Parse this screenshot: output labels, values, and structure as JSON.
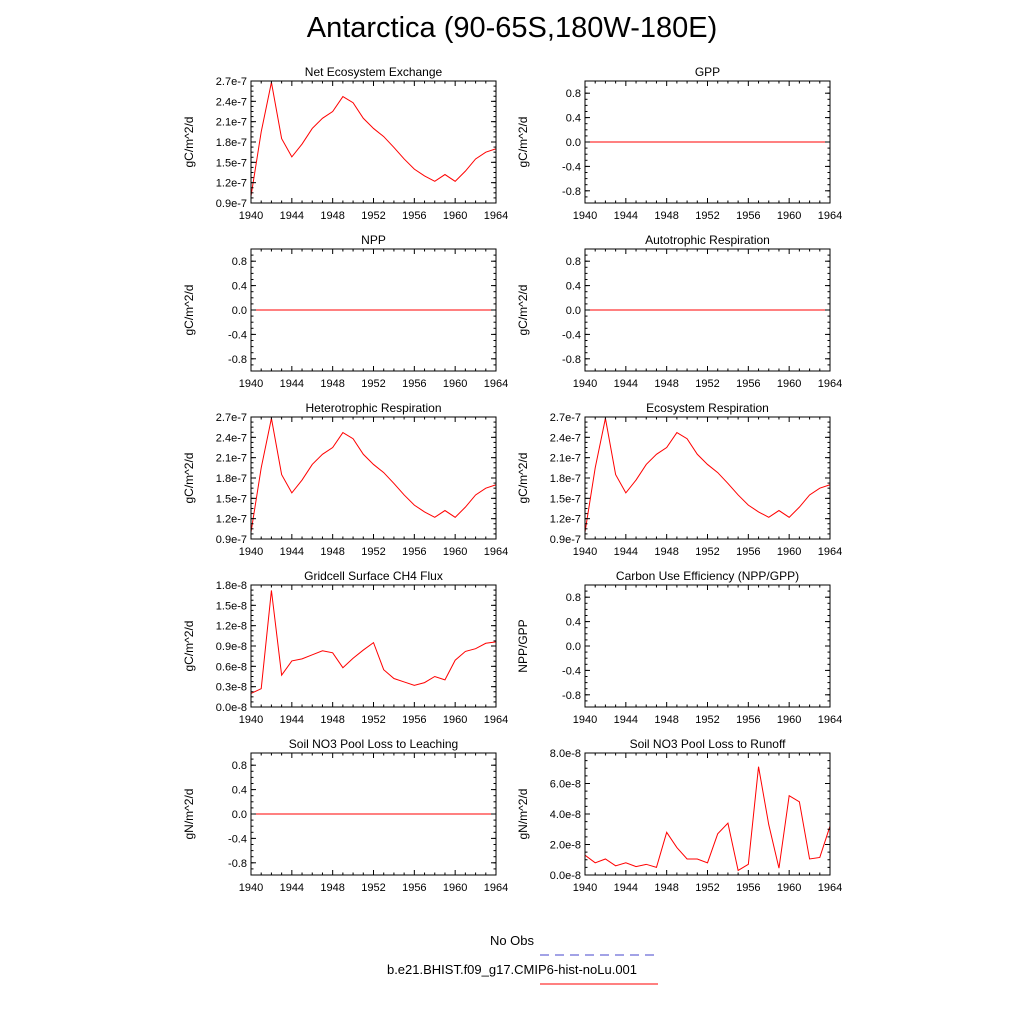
{
  "title": "Antarctica (90-65S,180W-180E)",
  "legend": {
    "entries": [
      {
        "label": "No Obs",
        "color": "#4444cc",
        "dash": true
      },
      {
        "label": "b.e21.BHIST.f09_g17.CMIP6-hist-noLu.001",
        "color": "#ff0000",
        "dash": false
      }
    ]
  },
  "chart_data": [
    {
      "type": "line",
      "title": "Net Ecosystem Exchange",
      "ylabel": "gC/m^2/d",
      "xlim": [
        1940,
        1964
      ],
      "xticks": [
        "1940",
        "1944",
        "1948",
        "1952",
        "1956",
        "1960",
        "1964"
      ],
      "ylim": [
        9e-08,
        2.7e-07
      ],
      "yticks": [
        "0.9e-7",
        "1.2e-7",
        "1.5e-7",
        "1.8e-7",
        "2.1e-7",
        "2.4e-7",
        "2.7e-7"
      ],
      "x": [
        1940,
        1941,
        1942,
        1943,
        1944,
        1945,
        1946,
        1947,
        1948,
        1949,
        1950,
        1951,
        1952,
        1953,
        1954,
        1955,
        1956,
        1957,
        1958,
        1959,
        1960,
        1961,
        1962,
        1963,
        1964
      ],
      "series": [
        {
          "color": "#ff0000",
          "values": [
            1e-07,
            1.95e-07,
            2.68e-07,
            1.85e-07,
            1.58e-07,
            1.77e-07,
            2e-07,
            2.15e-07,
            2.25e-07,
            2.47e-07,
            2.38e-07,
            2.15e-07,
            2e-07,
            1.88e-07,
            1.72e-07,
            1.55e-07,
            1.4e-07,
            1.3e-07,
            1.22e-07,
            1.32e-07,
            1.22e-07,
            1.37e-07,
            1.55e-07,
            1.65e-07,
            1.7e-07
          ]
        }
      ]
    },
    {
      "type": "line",
      "title": "GPP",
      "ylabel": "gC/m^2/d",
      "xlim": [
        1940,
        1964
      ],
      "xticks": [
        "1940",
        "1944",
        "1948",
        "1952",
        "1956",
        "1960",
        "1964"
      ],
      "ylim": [
        -1,
        1
      ],
      "yticks": [
        "-0.8",
        "-0.4",
        "0.0",
        "0.4",
        "0.8"
      ],
      "x": [
        1940,
        1964
      ],
      "series": [
        {
          "color": "#ff0000",
          "values": [
            0,
            0
          ]
        }
      ]
    },
    {
      "type": "line",
      "title": "NPP",
      "ylabel": "gC/m^2/d",
      "xlim": [
        1940,
        1964
      ],
      "xticks": [
        "1940",
        "1944",
        "1948",
        "1952",
        "1956",
        "1960",
        "1964"
      ],
      "ylim": [
        -1,
        1
      ],
      "yticks": [
        "-0.8",
        "-0.4",
        "0.0",
        "0.4",
        "0.8"
      ],
      "x": [
        1940,
        1964
      ],
      "series": [
        {
          "color": "#ff0000",
          "values": [
            0,
            0
          ]
        }
      ]
    },
    {
      "type": "line",
      "title": "Autotrophic Respiration",
      "ylabel": "gC/m^2/d",
      "xlim": [
        1940,
        1964
      ],
      "xticks": [
        "1940",
        "1944",
        "1948",
        "1952",
        "1956",
        "1960",
        "1964"
      ],
      "ylim": [
        -1,
        1
      ],
      "yticks": [
        "-0.8",
        "-0.4",
        "0.0",
        "0.4",
        "0.8"
      ],
      "x": [
        1940,
        1964
      ],
      "series": [
        {
          "color": "#ff0000",
          "values": [
            0,
            0
          ]
        }
      ]
    },
    {
      "type": "line",
      "title": "Heterotrophic Respiration",
      "ylabel": "gC/m^2/d",
      "xlim": [
        1940,
        1964
      ],
      "xticks": [
        "1940",
        "1944",
        "1948",
        "1952",
        "1956",
        "1960",
        "1964"
      ],
      "ylim": [
        9e-08,
        2.7e-07
      ],
      "yticks": [
        "0.9e-7",
        "1.2e-7",
        "1.5e-7",
        "1.8e-7",
        "2.1e-7",
        "2.4e-7",
        "2.7e-7"
      ],
      "x": [
        1940,
        1941,
        1942,
        1943,
        1944,
        1945,
        1946,
        1947,
        1948,
        1949,
        1950,
        1951,
        1952,
        1953,
        1954,
        1955,
        1956,
        1957,
        1958,
        1959,
        1960,
        1961,
        1962,
        1963,
        1964
      ],
      "series": [
        {
          "color": "#ff0000",
          "values": [
            1e-07,
            1.95e-07,
            2.68e-07,
            1.85e-07,
            1.58e-07,
            1.77e-07,
            2e-07,
            2.15e-07,
            2.25e-07,
            2.47e-07,
            2.38e-07,
            2.15e-07,
            2e-07,
            1.88e-07,
            1.72e-07,
            1.55e-07,
            1.4e-07,
            1.3e-07,
            1.22e-07,
            1.32e-07,
            1.22e-07,
            1.37e-07,
            1.55e-07,
            1.65e-07,
            1.7e-07
          ]
        }
      ]
    },
    {
      "type": "line",
      "title": "Ecosystem Respiration",
      "ylabel": "gC/m^2/d",
      "xlim": [
        1940,
        1964
      ],
      "xticks": [
        "1940",
        "1944",
        "1948",
        "1952",
        "1956",
        "1960",
        "1964"
      ],
      "ylim": [
        9e-08,
        2.7e-07
      ],
      "yticks": [
        "0.9e-7",
        "1.2e-7",
        "1.5e-7",
        "1.8e-7",
        "2.1e-7",
        "2.4e-7",
        "2.7e-7"
      ],
      "x": [
        1940,
        1941,
        1942,
        1943,
        1944,
        1945,
        1946,
        1947,
        1948,
        1949,
        1950,
        1951,
        1952,
        1953,
        1954,
        1955,
        1956,
        1957,
        1958,
        1959,
        1960,
        1961,
        1962,
        1963,
        1964
      ],
      "series": [
        {
          "color": "#ff0000",
          "values": [
            1e-07,
            1.95e-07,
            2.68e-07,
            1.85e-07,
            1.58e-07,
            1.77e-07,
            2e-07,
            2.15e-07,
            2.25e-07,
            2.47e-07,
            2.38e-07,
            2.15e-07,
            2e-07,
            1.88e-07,
            1.72e-07,
            1.55e-07,
            1.4e-07,
            1.3e-07,
            1.22e-07,
            1.32e-07,
            1.22e-07,
            1.37e-07,
            1.55e-07,
            1.65e-07,
            1.7e-07
          ]
        }
      ]
    },
    {
      "type": "line",
      "title": "Gridcell Surface CH4 Flux",
      "ylabel": "gC/m^2/d",
      "xlim": [
        1940,
        1964
      ],
      "xticks": [
        "1940",
        "1944",
        "1948",
        "1952",
        "1956",
        "1960",
        "1964"
      ],
      "ylim": [
        0,
        1.8e-08
      ],
      "yticks": [
        "0.0e-8",
        "0.3e-8",
        "0.6e-8",
        "0.9e-8",
        "1.2e-8",
        "1.5e-8",
        "1.8e-8"
      ],
      "x": [
        1940,
        1941,
        1942,
        1943,
        1944,
        1945,
        1946,
        1947,
        1948,
        1949,
        1950,
        1951,
        1952,
        1953,
        1954,
        1955,
        1956,
        1957,
        1958,
        1959,
        1960,
        1961,
        1962,
        1963,
        1964
      ],
      "series": [
        {
          "color": "#ff0000",
          "values": [
            2e-09,
            2.7e-09,
            1.72e-08,
            4.7e-09,
            6.8e-09,
            7.1e-09,
            7.7e-09,
            8.3e-09,
            8e-09,
            5.8e-09,
            7.2e-09,
            8.4e-09,
            9.5e-09,
            5.5e-09,
            4.2e-09,
            3.7e-09,
            3.2e-09,
            3.6e-09,
            4.5e-09,
            4e-09,
            6.9e-09,
            8.2e-09,
            8.6e-09,
            9.4e-09,
            9.6e-09
          ]
        }
      ]
    },
    {
      "type": "line",
      "title": "Carbon Use Efficiency (NPP/GPP)",
      "ylabel": "NPP/GPP",
      "xlim": [
        1940,
        1964
      ],
      "xticks": [
        "1940",
        "1944",
        "1948",
        "1952",
        "1956",
        "1960",
        "1964"
      ],
      "ylim": [
        -1,
        1
      ],
      "yticks": [
        "-0.8",
        "-0.4",
        "0.0",
        "0.4",
        "0.8"
      ],
      "x": [],
      "series": []
    },
    {
      "type": "line",
      "title": "Soil NO3 Pool Loss to Leaching",
      "ylabel": "gN/m^2/d",
      "xlim": [
        1940,
        1964
      ],
      "xticks": [
        "1940",
        "1944",
        "1948",
        "1952",
        "1956",
        "1960",
        "1964"
      ],
      "ylim": [
        -1,
        1
      ],
      "yticks": [
        "-0.8",
        "-0.4",
        "0.0",
        "0.4",
        "0.8"
      ],
      "x": [
        1940,
        1964
      ],
      "series": [
        {
          "color": "#ff0000",
          "values": [
            0,
            0
          ]
        }
      ]
    },
    {
      "type": "line",
      "title": "Soil NO3 Pool Loss to Runoff",
      "ylabel": "gN/m^2/d",
      "xlim": [
        1940,
        1964
      ],
      "xticks": [
        "1940",
        "1944",
        "1948",
        "1952",
        "1956",
        "1960",
        "1964"
      ],
      "ylim": [
        0,
        8e-08
      ],
      "yticks": [
        "0.0e-8",
        "2.0e-8",
        "4.0e-8",
        "6.0e-8",
        "8.0e-8"
      ],
      "x": [
        1940,
        1941,
        1942,
        1943,
        1944,
        1945,
        1946,
        1947,
        1948,
        1949,
        1950,
        1951,
        1952,
        1953,
        1954,
        1955,
        1956,
        1957,
        1958,
        1959,
        1960,
        1961,
        1962,
        1963,
        1964
      ],
      "series": [
        {
          "color": "#ff0000",
          "values": [
            1.3e-08,
            8e-09,
            1.05e-08,
            6e-09,
            8e-09,
            5.5e-09,
            7e-09,
            5e-09,
            2.8e-08,
            1.8e-08,
            1.05e-08,
            1.05e-08,
            8e-09,
            2.7e-08,
            3.4e-08,
            3e-09,
            7e-09,
            7.1e-08,
            3.3e-08,
            4.5e-09,
            5.2e-08,
            4.8e-08,
            1.05e-08,
            1.15e-08,
            3.2e-08
          ]
        }
      ]
    }
  ]
}
